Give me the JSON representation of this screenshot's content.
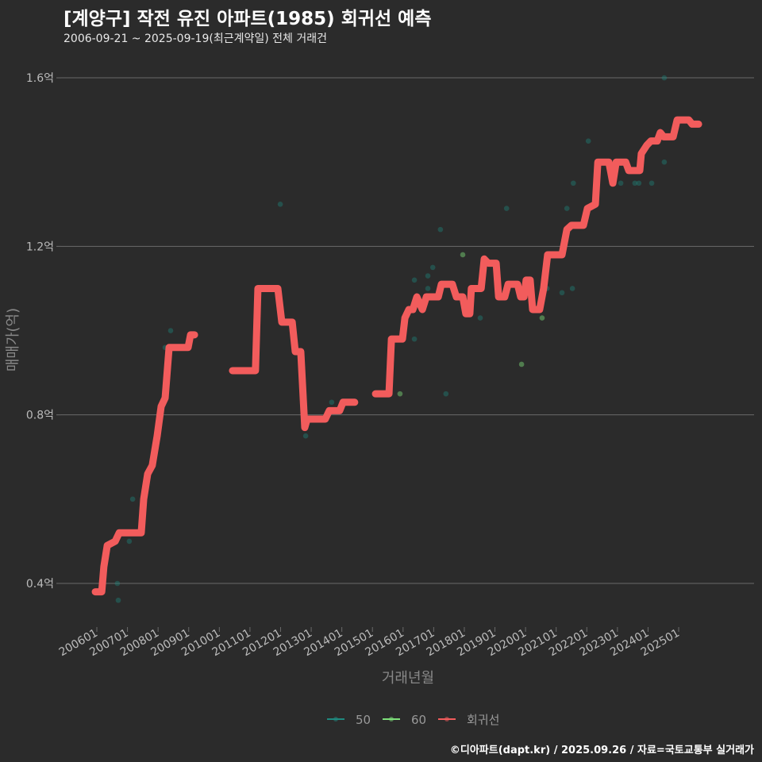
{
  "title": "[계양구] 작전 유진 아파트(1985) 회귀선 예측",
  "subtitle": "2006-09-21 ~ 2025-09-19(최근계약일) 전체 거래건",
  "footer": "©디아파트(dapt.kr) / 2025.09.26 / 자료=국토교통부 실거래가",
  "chart_data": {
    "type": "line",
    "xlabel": "거래년월",
    "ylabel": "매매가(억)",
    "ylim": [
      0.3,
      1.67
    ],
    "xlim": [
      2005.4,
      2026.3
    ],
    "yticks": [
      {
        "v": 0.4,
        "label": "0.4억"
      },
      {
        "v": 0.8,
        "label": "0.8억"
      },
      {
        "v": 1.2,
        "label": "1.2억"
      },
      {
        "v": 1.6,
        "label": "1.6억"
      }
    ],
    "xticks": [
      "200601",
      "200701",
      "200801",
      "200901",
      "201001",
      "201101",
      "201201",
      "201301",
      "201401",
      "201501",
      "201601",
      "201701",
      "201801",
      "201901",
      "202001",
      "202101",
      "202201",
      "202301",
      "202401",
      "202501"
    ],
    "grid": true,
    "legend_position": "bottom",
    "colors": {
      "50": "#1f8a80",
      "60": "#7ee07a",
      "regression": "#f25c5c"
    },
    "legend": [
      {
        "key": "50",
        "label": "50"
      },
      {
        "key": "60",
        "label": "60"
      },
      {
        "key": "regression",
        "label": "회귀선"
      }
    ],
    "scatter": [
      {
        "area": "50",
        "pts": [
          [
            2006.7,
            0.36
          ],
          [
            2006.67,
            0.4
          ],
          [
            2007.06,
            0.5
          ],
          [
            2007.17,
            0.6
          ],
          [
            2008.23,
            0.96
          ],
          [
            2008.41,
            1.0
          ],
          [
            2011.99,
            1.3
          ],
          [
            2012.82,
            0.75
          ],
          [
            2013.67,
            0.83
          ],
          [
            2016.37,
            0.98
          ],
          [
            2016.37,
            1.12
          ],
          [
            2016.81,
            1.13
          ],
          [
            2016.97,
            1.15
          ],
          [
            2016.81,
            1.1
          ],
          [
            2017.22,
            1.24
          ],
          [
            2017.4,
            0.85
          ],
          [
            2018.52,
            1.03
          ],
          [
            2019.38,
            1.29
          ],
          [
            2020.7,
            1.1
          ],
          [
            2021.19,
            1.09
          ],
          [
            2021.35,
            1.29
          ],
          [
            2021.53,
            1.1
          ],
          [
            2021.56,
            1.35
          ],
          [
            2022.05,
            1.45
          ],
          [
            2023.11,
            1.35
          ],
          [
            2023.57,
            1.35
          ],
          [
            2023.7,
            1.35
          ],
          [
            2024.12,
            1.35
          ],
          [
            2024.53,
            1.4
          ],
          [
            2024.53,
            1.6
          ]
        ]
      },
      {
        "area": "60",
        "pts": [
          [
            2015.9,
            0.85
          ],
          [
            2017.95,
            1.18
          ],
          [
            2019.87,
            0.92
          ],
          [
            2020.54,
            1.03
          ]
        ]
      }
    ],
    "regression": [
      [
        [
          2005.95,
          0.38
        ],
        [
          2006.16,
          0.38
        ],
        [
          2006.23,
          0.44
        ],
        [
          2006.34,
          0.49
        ],
        [
          2006.6,
          0.5
        ],
        [
          2006.73,
          0.52
        ],
        [
          2007.45,
          0.52
        ],
        [
          2007.53,
          0.6
        ],
        [
          2007.66,
          0.66
        ],
        [
          2007.81,
          0.68
        ],
        [
          2007.97,
          0.75
        ],
        [
          2008.1,
          0.82
        ],
        [
          2008.23,
          0.84
        ],
        [
          2008.36,
          0.96
        ],
        [
          2008.98,
          0.96
        ],
        [
          2009.06,
          0.99
        ],
        [
          2009.19,
          0.99
        ]
      ],
      [
        [
          2010.43,
          0.905
        ],
        [
          2011.18,
          0.905
        ],
        [
          2011.26,
          1.1
        ],
        [
          2011.91,
          1.1
        ],
        [
          2012.04,
          1.02
        ],
        [
          2012.38,
          1.02
        ],
        [
          2012.48,
          0.95
        ],
        [
          2012.66,
          0.95
        ],
        [
          2012.79,
          0.77
        ],
        [
          2012.87,
          0.79
        ],
        [
          2013.46,
          0.79
        ],
        [
          2013.59,
          0.81
        ],
        [
          2013.93,
          0.81
        ],
        [
          2014.04,
          0.83
        ],
        [
          2014.42,
          0.83
        ]
      ],
      [
        [
          2015.1,
          0.85
        ],
        [
          2015.54,
          0.85
        ],
        [
          2015.62,
          0.98
        ],
        [
          2015.98,
          0.98
        ],
        [
          2016.06,
          1.03
        ],
        [
          2016.19,
          1.05
        ],
        [
          2016.32,
          1.05
        ],
        [
          2016.45,
          1.08
        ],
        [
          2016.63,
          1.05
        ],
        [
          2016.76,
          1.08
        ],
        [
          2017.15,
          1.08
        ],
        [
          2017.25,
          1.11
        ],
        [
          2017.61,
          1.11
        ],
        [
          2017.74,
          1.08
        ],
        [
          2017.95,
          1.08
        ],
        [
          2018.05,
          1.04
        ],
        [
          2018.18,
          1.04
        ],
        [
          2018.23,
          1.1
        ],
        [
          2018.55,
          1.1
        ],
        [
          2018.65,
          1.17
        ],
        [
          2018.78,
          1.16
        ],
        [
          2019.04,
          1.16
        ],
        [
          2019.12,
          1.08
        ],
        [
          2019.32,
          1.08
        ],
        [
          2019.43,
          1.11
        ],
        [
          2019.74,
          1.11
        ],
        [
          2019.84,
          1.08
        ],
        [
          2019.95,
          1.08
        ],
        [
          2020.02,
          1.12
        ],
        [
          2020.15,
          1.12
        ],
        [
          2020.23,
          1.05
        ],
        [
          2020.46,
          1.05
        ],
        [
          2020.59,
          1.1
        ],
        [
          2020.72,
          1.18
        ],
        [
          2021.19,
          1.18
        ],
        [
          2021.35,
          1.24
        ],
        [
          2021.5,
          1.25
        ],
        [
          2021.89,
          1.25
        ],
        [
          2022.02,
          1.29
        ],
        [
          2022.28,
          1.3
        ],
        [
          2022.36,
          1.4
        ],
        [
          2022.72,
          1.4
        ],
        [
          2022.85,
          1.35
        ],
        [
          2022.96,
          1.4
        ],
        [
          2023.27,
          1.4
        ],
        [
          2023.37,
          1.38
        ],
        [
          2023.73,
          1.38
        ],
        [
          2023.78,
          1.42
        ],
        [
          2023.96,
          1.44
        ],
        [
          2024.09,
          1.45
        ],
        [
          2024.3,
          1.45
        ],
        [
          2024.4,
          1.47
        ],
        [
          2024.51,
          1.46
        ],
        [
          2024.82,
          1.46
        ],
        [
          2024.95,
          1.5
        ],
        [
          2025.33,
          1.5
        ],
        [
          2025.44,
          1.49
        ],
        [
          2025.65,
          1.49
        ]
      ]
    ]
  }
}
